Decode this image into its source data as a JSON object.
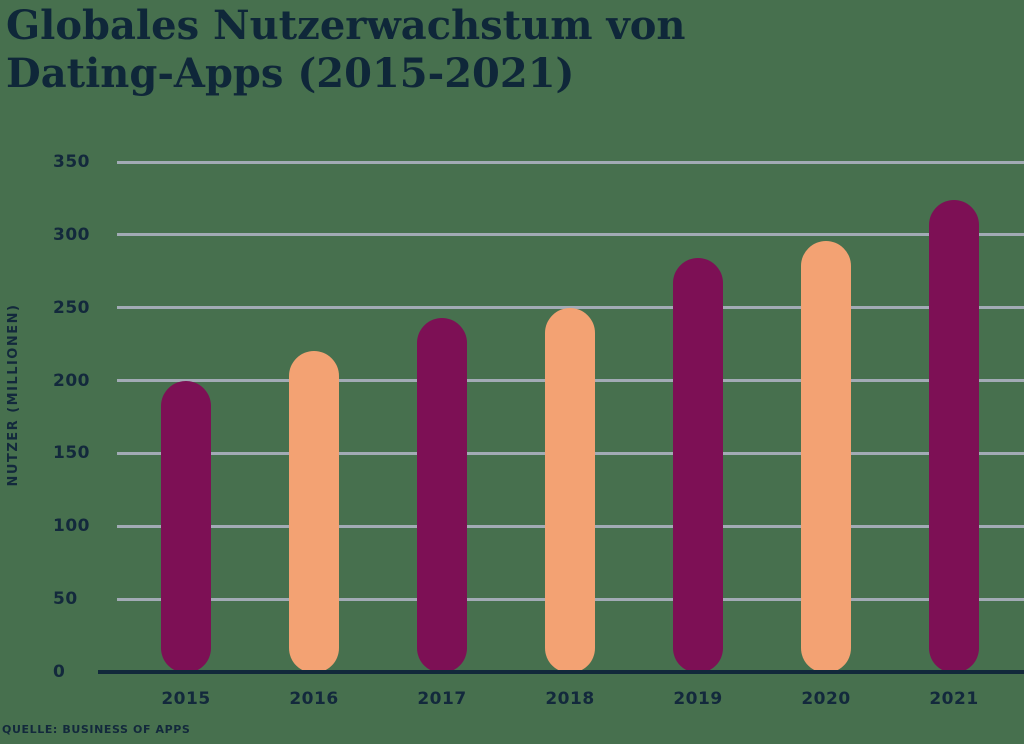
{
  "title": {
    "line1": "Globales Nutzerwachstum von",
    "line2": "Dating-Apps (2015-2021)"
  },
  "colors": {
    "background": "#47704E",
    "bar_primary": "#7D1055",
    "bar_secondary": "#F3A273",
    "text_navy": "#13293C",
    "title_navy": "#0F2739",
    "gridline_gray": "#A2ABB5",
    "axis_navy": "#12293B"
  },
  "chart_data": {
    "type": "bar",
    "title": "Globales Nutzerwachstum von Dating-Apps (2015-2021)",
    "ylabel": "NUTZER (MILLIONEN)",
    "xlabel": "",
    "categories": [
      "2015",
      "2016",
      "2017",
      "2018",
      "2019",
      "2020",
      "2021"
    ],
    "values": [
      200,
      220,
      243,
      250,
      284,
      296,
      324
    ],
    "bar_colors": [
      "#7D1055",
      "#F3A273",
      "#7D1055",
      "#F3A273",
      "#7D1055",
      "#F3A273",
      "#7D1055"
    ],
    "yticks": [
      0,
      50,
      100,
      150,
      200,
      250,
      300,
      350
    ],
    "ylim": [
      0,
      350
    ],
    "grid": true,
    "legend": false,
    "source": "QUELLE: BUSINESS OF APPS"
  }
}
